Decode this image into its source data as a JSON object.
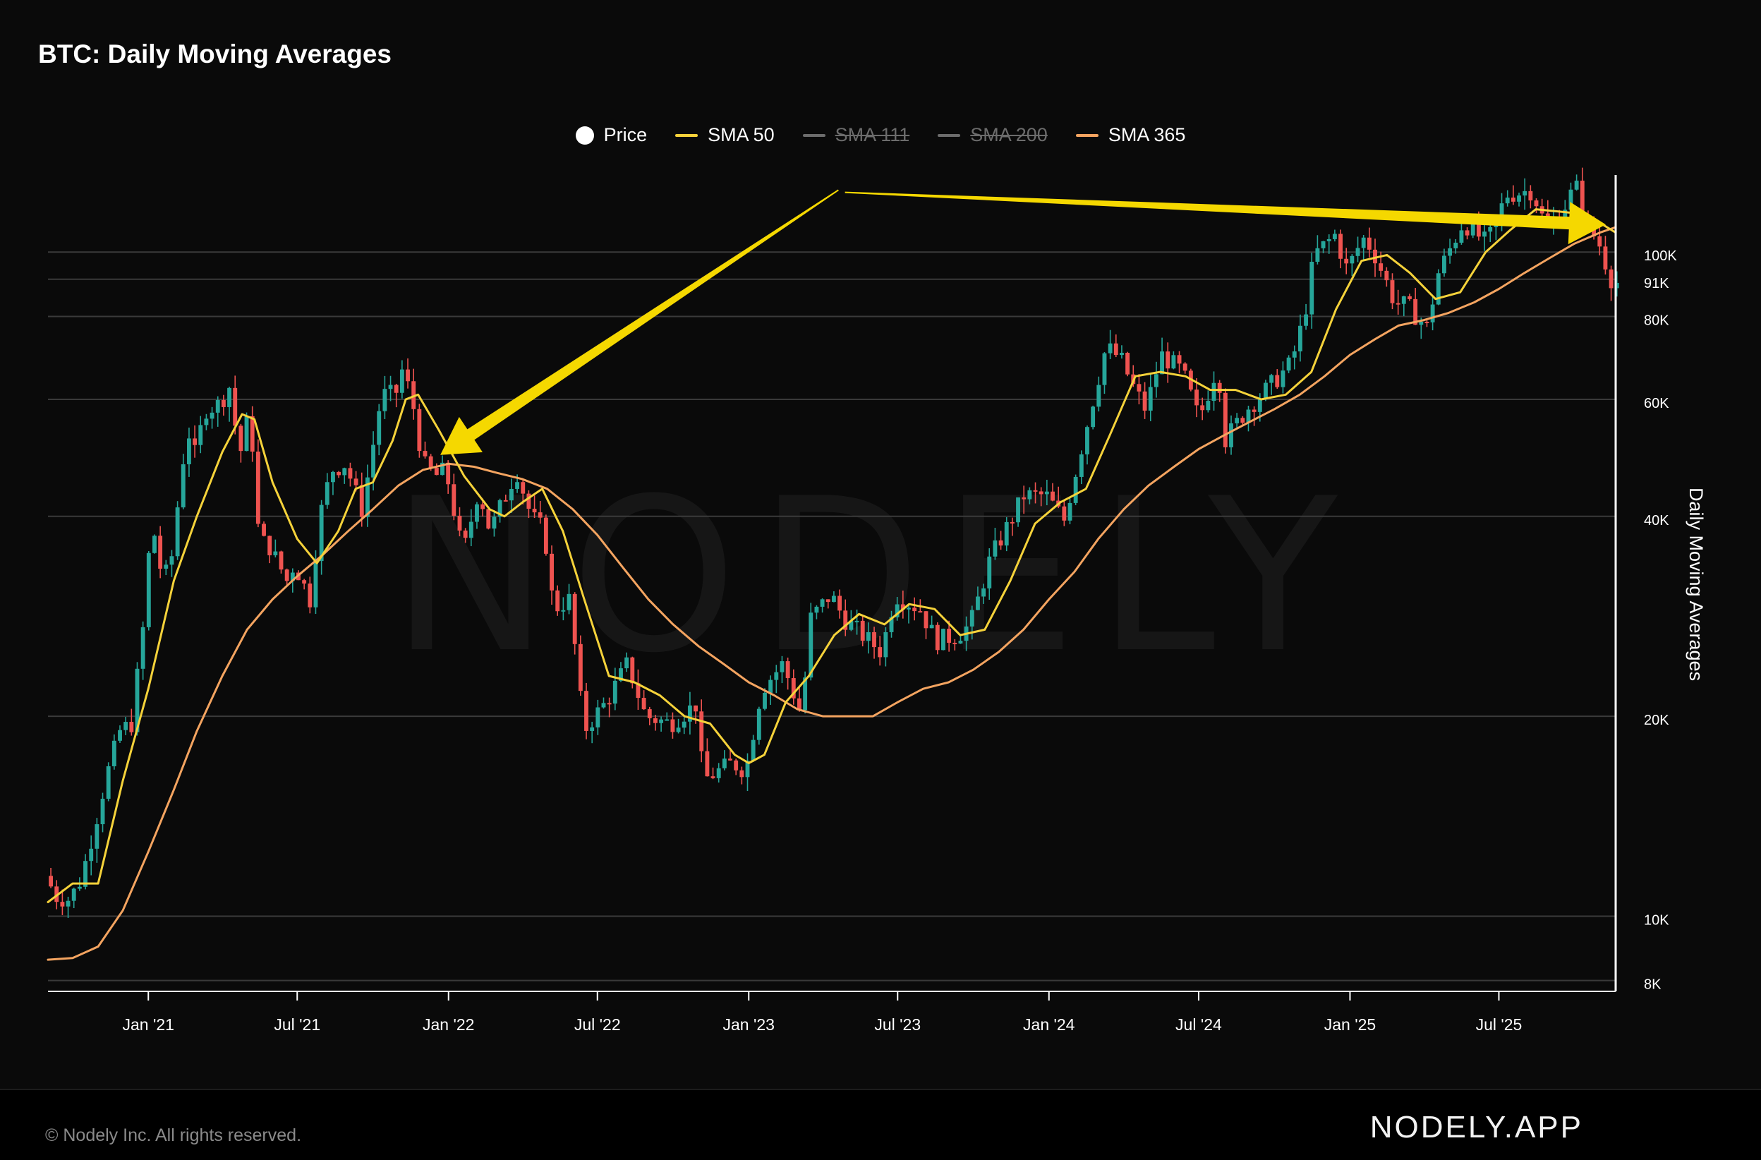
{
  "header": {
    "title": "BTC: Daily Moving Averages"
  },
  "footer": {
    "copyright": "© Nodely Inc. All rights reserved.",
    "brand": "NODELY.APP"
  },
  "watermark": "NODELY",
  "colors": {
    "background": "#0a0a0a",
    "up": "#26a69a",
    "down": "#ef5350",
    "sma50": "#f5d23a",
    "sma365": "#f4a460",
    "arrow": "#f5d800",
    "grid": "#3a3a3a"
  },
  "chart_data": {
    "type": "candlestick",
    "title": "BTC: Daily Moving Averages",
    "ylabel": "Daily Moving Averages",
    "y_scale": "log",
    "ylim": [
      7800,
      130000
    ],
    "xlim": [
      "2020-09-01",
      "2025-11-20"
    ],
    "legend_position": "top-center",
    "legend": [
      {
        "name": "Price",
        "active": true,
        "color": "#ffffff",
        "marker": "dot"
      },
      {
        "name": "SMA 50",
        "active": true,
        "color": "#f5d23a",
        "marker": "line"
      },
      {
        "name": "SMA 111",
        "active": false,
        "color": "#6c6c6c",
        "marker": "line"
      },
      {
        "name": "SMA 200",
        "active": false,
        "color": "#6c6c6c",
        "marker": "line"
      },
      {
        "name": "SMA 365",
        "active": true,
        "color": "#f4a460",
        "marker": "line"
      }
    ],
    "y_ticks": [
      {
        "value": 8000,
        "label": "8K"
      },
      {
        "value": 10000,
        "label": "10K"
      },
      {
        "value": 20000,
        "label": "20K"
      },
      {
        "value": 40000,
        "label": "40K"
      },
      {
        "value": 60000,
        "label": "60K"
      },
      {
        "value": 80000,
        "label": "80K"
      },
      {
        "value": 91000,
        "label": "91K"
      },
      {
        "value": 100000,
        "label": "100K"
      }
    ],
    "x_ticks": [
      {
        "date": "2021-01-01",
        "label": "Jan '21"
      },
      {
        "date": "2021-07-01",
        "label": "Jul '21"
      },
      {
        "date": "2022-01-01",
        "label": "Jan '22"
      },
      {
        "date": "2022-07-01",
        "label": "Jul '22"
      },
      {
        "date": "2023-01-01",
        "label": "Jan '23"
      },
      {
        "date": "2023-07-01",
        "label": "Jul '23"
      },
      {
        "date": "2024-01-01",
        "label": "Jan '24"
      },
      {
        "date": "2024-07-01",
        "label": "Jul '24"
      },
      {
        "date": "2025-01-01",
        "label": "Jan '25"
      },
      {
        "date": "2025-07-01",
        "label": "Jul '25"
      }
    ],
    "price_series": [
      [
        "2020-09-01",
        11500
      ],
      [
        "2020-09-15",
        10700
      ],
      [
        "2020-10-01",
        10600
      ],
      [
        "2020-10-15",
        11400
      ],
      [
        "2020-11-01",
        13800
      ],
      [
        "2020-11-15",
        16300
      ],
      [
        "2020-12-01",
        19000
      ],
      [
        "2020-12-15",
        19500
      ],
      [
        "2021-01-01",
        29000
      ],
      [
        "2021-01-08",
        40000
      ],
      [
        "2021-01-22",
        32000
      ],
      [
        "2021-02-01",
        34000
      ],
      [
        "2021-02-15",
        48000
      ],
      [
        "2021-02-22",
        54000
      ],
      [
        "2021-03-01",
        49000
      ],
      [
        "2021-03-15",
        58000
      ],
      [
        "2021-04-01",
        59000
      ],
      [
        "2021-04-14",
        63000
      ],
      [
        "2021-04-25",
        49000
      ],
      [
        "2021-05-08",
        58000
      ],
      [
        "2021-05-19",
        37000
      ],
      [
        "2021-06-01",
        36000
      ],
      [
        "2021-06-22",
        32000
      ],
      [
        "2021-07-01",
        34000
      ],
      [
        "2021-07-20",
        30000
      ],
      [
        "2021-08-01",
        40000
      ],
      [
        "2021-08-15",
        47000
      ],
      [
        "2021-09-01",
        48000
      ],
      [
        "2021-09-21",
        41000
      ],
      [
        "2021-10-01",
        48000
      ],
      [
        "2021-10-15",
        61000
      ],
      [
        "2021-11-01",
        61000
      ],
      [
        "2021-11-10",
        67000
      ],
      [
        "2021-11-25",
        57000
      ],
      [
        "2021-12-04",
        48000
      ],
      [
        "2021-12-20",
        46000
      ],
      [
        "2022-01-01",
        47000
      ],
      [
        "2022-01-22",
        35000
      ],
      [
        "2022-02-10",
        44000
      ],
      [
        "2022-02-24",
        38000
      ],
      [
        "2022-03-28",
        47000
      ],
      [
        "2022-04-15",
        40000
      ],
      [
        "2022-05-01",
        38000
      ],
      [
        "2022-05-12",
        29000
      ],
      [
        "2022-06-01",
        30000
      ],
      [
        "2022-06-18",
        19000
      ],
      [
        "2022-07-01",
        20000
      ],
      [
        "2022-07-15",
        21000
      ],
      [
        "2022-08-10",
        24000
      ],
      [
        "2022-09-01",
        20000
      ],
      [
        "2022-10-01",
        19500
      ],
      [
        "2022-11-05",
        21000
      ],
      [
        "2022-11-09",
        16000
      ],
      [
        "2022-12-15",
        17000
      ],
      [
        "2023-01-01",
        16600
      ],
      [
        "2023-01-20",
        22000
      ],
      [
        "2023-02-15",
        24000
      ],
      [
        "2023-03-10",
        20000
      ],
      [
        "2023-03-20",
        28000
      ],
      [
        "2023-04-14",
        30500
      ],
      [
        "2023-05-01",
        28000
      ],
      [
        "2023-06-15",
        25000
      ],
      [
        "2023-07-01",
        30500
      ],
      [
        "2023-08-01",
        29000
      ],
      [
        "2023-08-20",
        26000
      ],
      [
        "2023-09-15",
        26500
      ],
      [
        "2023-10-01",
        27500
      ],
      [
        "2023-10-25",
        34500
      ],
      [
        "2023-12-05",
        43000
      ],
      [
        "2024-01-01",
        43000
      ],
      [
        "2024-01-23",
        39500
      ],
      [
        "2024-02-15",
        52000
      ],
      [
        "2024-03-01",
        62000
      ],
      [
        "2024-03-14",
        72000
      ],
      [
        "2024-04-01",
        69000
      ],
      [
        "2024-04-15",
        63000
      ],
      [
        "2024-05-01",
        58000
      ],
      [
        "2024-05-20",
        70000
      ],
      [
        "2024-06-15",
        66000
      ],
      [
        "2024-07-05",
        56000
      ],
      [
        "2024-07-28",
        68000
      ],
      [
        "2024-08-05",
        52000
      ],
      [
        "2024-09-01",
        58000
      ],
      [
        "2024-09-30",
        63000
      ],
      [
        "2024-10-25",
        68000
      ],
      [
        "2024-11-10",
        80000
      ],
      [
        "2024-11-22",
        99000
      ],
      [
        "2024-12-17",
        106000
      ],
      [
        "2025-01-01",
        94000
      ],
      [
        "2025-01-20",
        105000
      ],
      [
        "2025-02-01",
        101000
      ],
      [
        "2025-02-28",
        84000
      ],
      [
        "2025-03-15",
        83000
      ],
      [
        "2025-04-08",
        77000
      ],
      [
        "2025-04-22",
        93000
      ],
      [
        "2025-05-22",
        111000
      ],
      [
        "2025-06-20",
        103000
      ],
      [
        "2025-07-14",
        122000
      ],
      [
        "2025-08-14",
        124000
      ],
      [
        "2025-09-01",
        108000
      ],
      [
        "2025-09-20",
        116000
      ],
      [
        "2025-10-06",
        126000
      ],
      [
        "2025-10-20",
        110000
      ],
      [
        "2025-11-05",
        102000
      ],
      [
        "2025-11-14",
        94000
      ],
      [
        "2025-11-20",
        90000
      ]
    ],
    "sma_50": [
      [
        "2020-09-01",
        10500
      ],
      [
        "2020-10-01",
        11200
      ],
      [
        "2020-11-01",
        11200
      ],
      [
        "2020-12-01",
        16000
      ],
      [
        "2021-01-01",
        22000
      ],
      [
        "2021-02-01",
        32000
      ],
      [
        "2021-03-01",
        40000
      ],
      [
        "2021-04-01",
        50000
      ],
      [
        "2021-04-25",
        57000
      ],
      [
        "2021-05-10",
        56000
      ],
      [
        "2021-06-01",
        45000
      ],
      [
        "2021-07-01",
        37000
      ],
      [
        "2021-07-25",
        34000
      ],
      [
        "2021-08-20",
        38000
      ],
      [
        "2021-09-10",
        44000
      ],
      [
        "2021-10-01",
        45000
      ],
      [
        "2021-10-25",
        52000
      ],
      [
        "2021-11-10",
        60000
      ],
      [
        "2021-11-25",
        61000
      ],
      [
        "2021-12-20",
        54000
      ],
      [
        "2022-01-20",
        46000
      ],
      [
        "2022-02-20",
        41000
      ],
      [
        "2022-03-10",
        40000
      ],
      [
        "2022-04-01",
        42000
      ],
      [
        "2022-04-25",
        44000
      ],
      [
        "2022-05-20",
        38000
      ],
      [
        "2022-06-15",
        30000
      ],
      [
        "2022-07-15",
        23000
      ],
      [
        "2022-08-15",
        22500
      ],
      [
        "2022-09-15",
        21500
      ],
      [
        "2022-10-15",
        20000
      ],
      [
        "2022-11-15",
        19500
      ],
      [
        "2022-12-15",
        17500
      ],
      [
        "2023-01-01",
        17000
      ],
      [
        "2023-01-20",
        17500
      ],
      [
        "2023-02-15",
        21000
      ],
      [
        "2023-03-15",
        23000
      ],
      [
        "2023-04-15",
        26500
      ],
      [
        "2023-05-15",
        28500
      ],
      [
        "2023-06-15",
        27500
      ],
      [
        "2023-07-15",
        29500
      ],
      [
        "2023-08-15",
        29000
      ],
      [
        "2023-09-15",
        26500
      ],
      [
        "2023-10-15",
        27000
      ],
      [
        "2023-11-15",
        32000
      ],
      [
        "2023-12-15",
        39000
      ],
      [
        "2024-01-15",
        42000
      ],
      [
        "2024-02-15",
        44000
      ],
      [
        "2024-03-15",
        53000
      ],
      [
        "2024-04-15",
        65000
      ],
      [
        "2024-05-15",
        66000
      ],
      [
        "2024-06-15",
        65000
      ],
      [
        "2024-07-15",
        62000
      ],
      [
        "2024-08-15",
        62000
      ],
      [
        "2024-09-15",
        60000
      ],
      [
        "2024-10-15",
        61000
      ],
      [
        "2024-11-15",
        66000
      ],
      [
        "2024-12-15",
        82000
      ],
      [
        "2025-01-15",
        97000
      ],
      [
        "2025-02-15",
        99000
      ],
      [
        "2025-03-15",
        93000
      ],
      [
        "2025-04-15",
        85000
      ],
      [
        "2025-05-15",
        87000
      ],
      [
        "2025-06-15",
        100000
      ],
      [
        "2025-07-15",
        108000
      ],
      [
        "2025-08-15",
        116000
      ],
      [
        "2025-09-15",
        115000
      ],
      [
        "2025-10-15",
        114000
      ],
      [
        "2025-11-20",
        107000
      ]
    ],
    "sma_365": [
      [
        "2020-09-01",
        8600
      ],
      [
        "2020-10-01",
        8650
      ],
      [
        "2020-11-01",
        9000
      ],
      [
        "2020-12-01",
        10200
      ],
      [
        "2021-01-01",
        12500
      ],
      [
        "2021-02-01",
        15500
      ],
      [
        "2021-03-01",
        19000
      ],
      [
        "2021-04-01",
        23000
      ],
      [
        "2021-05-01",
        27000
      ],
      [
        "2021-06-01",
        30000
      ],
      [
        "2021-07-01",
        32500
      ],
      [
        "2021-08-01",
        35000
      ],
      [
        "2021-09-01",
        38000
      ],
      [
        "2021-10-01",
        41000
      ],
      [
        "2021-11-01",
        44500
      ],
      [
        "2021-12-01",
        47000
      ],
      [
        "2022-01-01",
        48000
      ],
      [
        "2022-02-01",
        47500
      ],
      [
        "2022-03-01",
        46500
      ],
      [
        "2022-04-01",
        45500
      ],
      [
        "2022-05-01",
        44000
      ],
      [
        "2022-06-01",
        41000
      ],
      [
        "2022-07-01",
        37500
      ],
      [
        "2022-08-01",
        33500
      ],
      [
        "2022-09-01",
        30000
      ],
      [
        "2022-10-01",
        27500
      ],
      [
        "2022-11-01",
        25500
      ],
      [
        "2022-12-01",
        24000
      ],
      [
        "2023-01-01",
        22500
      ],
      [
        "2023-02-01",
        21500
      ],
      [
        "2023-03-01",
        20500
      ],
      [
        "2023-04-01",
        20000
      ],
      [
        "2023-05-01",
        20000
      ],
      [
        "2023-06-01",
        20000
      ],
      [
        "2023-07-01",
        21000
      ],
      [
        "2023-08-01",
        22000
      ],
      [
        "2023-09-01",
        22500
      ],
      [
        "2023-10-01",
        23500
      ],
      [
        "2023-11-01",
        25000
      ],
      [
        "2023-12-01",
        27000
      ],
      [
        "2024-01-01",
        30000
      ],
      [
        "2024-02-01",
        33000
      ],
      [
        "2024-03-01",
        37000
      ],
      [
        "2024-04-01",
        41000
      ],
      [
        "2024-05-01",
        44500
      ],
      [
        "2024-06-01",
        47500
      ],
      [
        "2024-07-01",
        50500
      ],
      [
        "2024-08-01",
        53000
      ],
      [
        "2024-09-01",
        55500
      ],
      [
        "2024-10-01",
        58000
      ],
      [
        "2024-11-01",
        61000
      ],
      [
        "2024-12-01",
        65000
      ],
      [
        "2025-01-01",
        70000
      ],
      [
        "2025-02-01",
        74000
      ],
      [
        "2025-03-01",
        77500
      ],
      [
        "2025-04-01",
        79000
      ],
      [
        "2025-05-01",
        81000
      ],
      [
        "2025-06-01",
        84000
      ],
      [
        "2025-07-01",
        88000
      ],
      [
        "2025-08-01",
        93000
      ],
      [
        "2025-09-01",
        98000
      ],
      [
        "2025-10-01",
        103000
      ],
      [
        "2025-11-01",
        107000
      ],
      [
        "2025-11-20",
        109000
      ]
    ],
    "annotations": [
      {
        "type": "arrow",
        "from": {
          "date": "2023-04-20",
          "value": 124000
        },
        "to": {
          "date": "2021-12-22",
          "value": 49500
        }
      },
      {
        "type": "arrow",
        "from": {
          "date": "2023-04-28",
          "value": 123000
        },
        "to": {
          "date": "2025-11-08",
          "value": 110000
        }
      }
    ]
  }
}
